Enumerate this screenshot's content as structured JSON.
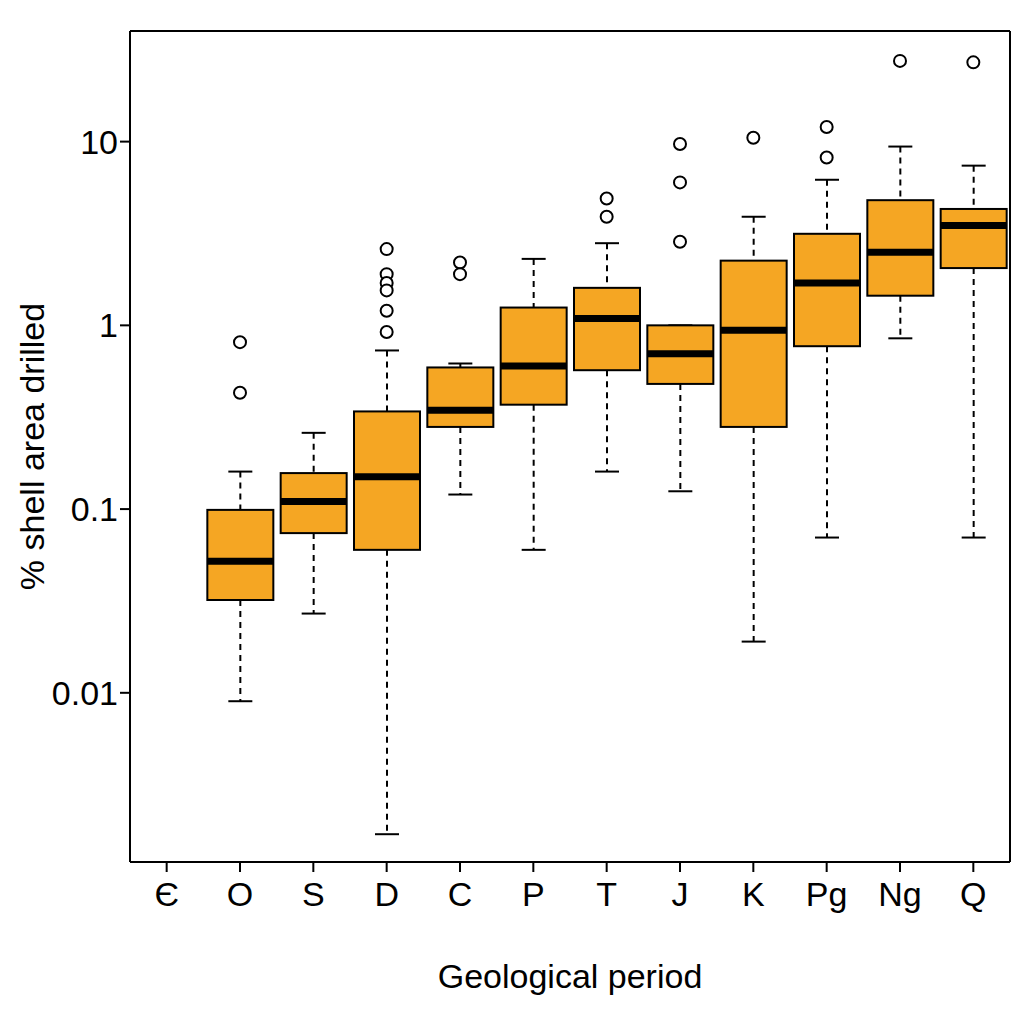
{
  "chart_data": {
    "type": "box",
    "x_label": "Geological period",
    "y_label": "% shell area drilled",
    "categories": [
      "Є",
      "O",
      "S",
      "D",
      "C",
      "P",
      "T",
      "J",
      "K",
      "Pg",
      "Ng",
      "Q"
    ],
    "whisker_low": [
      null,
      0.009,
      0.027,
      0.0017,
      0.12,
      0.06,
      0.16,
      0.125,
      0.019,
      0.07,
      0.85,
      0.07
    ],
    "q1": [
      null,
      0.032,
      0.074,
      0.06,
      0.28,
      0.37,
      0.57,
      0.48,
      0.28,
      0.77,
      1.45,
      2.05
    ],
    "median": [
      null,
      0.052,
      0.11,
      0.15,
      0.345,
      0.6,
      1.09,
      0.7,
      0.94,
      1.7,
      2.5,
      3.5
    ],
    "q3": [
      null,
      0.099,
      0.157,
      0.34,
      0.59,
      1.25,
      1.6,
      1.0,
      2.25,
      3.15,
      4.8,
      4.3
    ],
    "whisker_high": [
      null,
      0.16,
      0.26,
      0.73,
      0.62,
      2.3,
      2.8,
      1.0,
      3.9,
      6.2,
      9.4,
      7.4
    ],
    "outliers": [
      [],
      [
        0.43,
        0.81
      ],
      [],
      [
        2.6,
        1.9,
        1.7,
        1.55,
        1.2,
        0.92
      ],
      [
        2.2,
        1.9
      ],
      [],
      [
        4.9,
        3.9
      ],
      [
        9.7,
        6.0,
        2.85
      ],
      [
        10.5
      ],
      [
        12,
        8.2
      ],
      [
        27.5
      ],
      [
        27
      ]
    ],
    "color": "#f5a623",
    "log": "y",
    "ylim": [
      0.0012,
      40
    ],
    "yticks": [
      0.01,
      0.1,
      1,
      10
    ],
    "grid": false
  }
}
